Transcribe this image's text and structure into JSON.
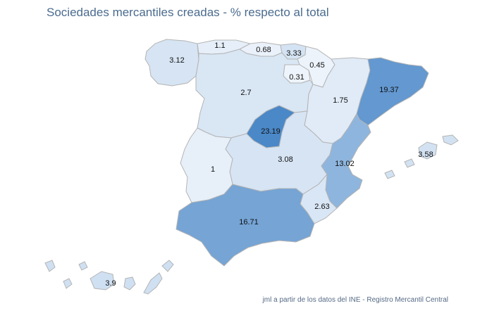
{
  "title": "Sociedades mercantiles creadas - % respecto al total",
  "source": "jml a partir de los datos del INE - Registro Mercantil Central",
  "colors": {
    "low": "#f1f6fc",
    "high": "#4a88c8",
    "stroke": "#b4b4b4"
  },
  "regions": [
    {
      "id": "galicia",
      "label": "3.12",
      "value": 3.12
    },
    {
      "id": "asturias",
      "label": "1.1",
      "value": 1.1
    },
    {
      "id": "cantabria",
      "label": "0.68",
      "value": 0.68
    },
    {
      "id": "pais-vasco",
      "label": "3.33",
      "value": 3.33
    },
    {
      "id": "navarra",
      "label": "0.45",
      "value": 0.45
    },
    {
      "id": "la-rioja",
      "label": "0.31",
      "value": 0.31
    },
    {
      "id": "castilla-leon",
      "label": "2.7",
      "value": 2.7
    },
    {
      "id": "aragon",
      "label": "1.75",
      "value": 1.75
    },
    {
      "id": "cataluna",
      "label": "19.37",
      "value": 19.37
    },
    {
      "id": "madrid",
      "label": "23.19",
      "value": 23.19
    },
    {
      "id": "extremadura",
      "label": "1",
      "value": 1
    },
    {
      "id": "castilla-la-mancha",
      "label": "3.08",
      "value": 3.08
    },
    {
      "id": "valencia",
      "label": "13.02",
      "value": 13.02
    },
    {
      "id": "baleares",
      "label": "3.58",
      "value": 3.58
    },
    {
      "id": "murcia",
      "label": "2.63",
      "value": 2.63
    },
    {
      "id": "andalucia",
      "label": "16.71",
      "value": 16.71
    },
    {
      "id": "canarias",
      "label": "3.9",
      "value": 3.9
    }
  ]
}
